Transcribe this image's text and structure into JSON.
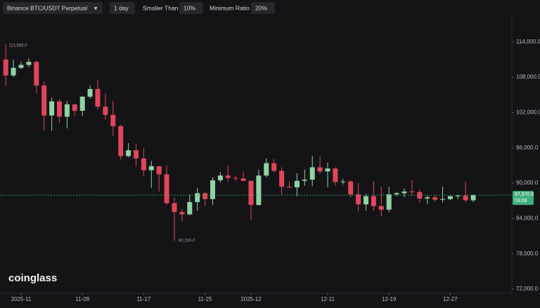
{
  "toolbar": {
    "symbol": "Binance BTC/USDT Perpetual",
    "interval": "1 day",
    "filter_label": "Smaller Than",
    "filter_value": "10%",
    "ratio_label": "Minimum Ratio",
    "ratio_value": "20%"
  },
  "brand": "coinglass",
  "chart_data": {
    "type": "candlestick",
    "x": [
      "10-30",
      "10-31",
      "11-01",
      "11-02",
      "11-03",
      "11-04",
      "11-05",
      "11-06",
      "11-07",
      "11-08",
      "11-09",
      "11-10",
      "11-11",
      "11-12",
      "11-13",
      "11-14",
      "11-15",
      "11-16",
      "11-17",
      "11-18",
      "11-19",
      "11-20",
      "11-21",
      "11-22",
      "11-23",
      "11-24",
      "11-25",
      "11-26",
      "11-27",
      "11-28",
      "11-29",
      "11-30",
      "12-01",
      "12-02",
      "12-03",
      "12-04",
      "12-05",
      "12-06",
      "12-07",
      "12-08",
      "12-09",
      "12-10",
      "12-11",
      "12-12",
      "12-13",
      "12-14",
      "12-15",
      "12-16",
      "12-17",
      "12-18",
      "12-19",
      "12-20",
      "12-21",
      "12-22",
      "12-23",
      "12-24",
      "12-25",
      "12-26",
      "12-27",
      "12-28",
      "12-29",
      "12-30"
    ],
    "open": [
      111000,
      108300,
      109600,
      110100,
      110600,
      106600,
      101500,
      103900,
      101300,
      103400,
      102300,
      104700,
      106000,
      103000,
      101600,
      99700,
      94600,
      95600,
      94200,
      92200,
      92900,
      91500,
      86600,
      85100,
      84700,
      86800,
      88300,
      87300,
      90500,
      91300,
      90900,
      90800,
      90400,
      86300,
      91300,
      93400,
      92100,
      89400,
      89300,
      90400,
      90600,
      92700,
      92000,
      92500,
      90200,
      90300,
      88100,
      86400,
      87800,
      86100,
      85500,
      88100,
      88300,
      88600,
      88500,
      87400,
      87600,
      87200,
      87300,
      87800,
      87900,
      87100
    ],
    "high": [
      113593,
      111000,
      110600,
      111200,
      110800,
      107300,
      104500,
      104200,
      104000,
      103400,
      104800,
      106600,
      107500,
      105300,
      104000,
      99900,
      96800,
      96600,
      96000,
      93800,
      92900,
      93100,
      87500,
      85600,
      88100,
      89200,
      88500,
      91000,
      91900,
      93100,
      91200,
      92000,
      90400,
      92300,
      94200,
      94100,
      92700,
      90300,
      91700,
      92300,
      94600,
      94500,
      93500,
      92700,
      90700,
      90500,
      90000,
      88200,
      90300,
      89400,
      89400,
      88500,
      89100,
      90500,
      88900,
      87900,
      88000,
      89400,
      87900,
      88000,
      90300,
      88100
    ],
    "low": [
      106500,
      108000,
      109400,
      109700,
      105300,
      98900,
      98900,
      100300,
      99300,
      101500,
      101400,
      104400,
      102500,
      100800,
      98000,
      94000,
      94400,
      92800,
      91200,
      89200,
      88600,
      86300,
      80230,
      83500,
      84600,
      85300,
      86100,
      86300,
      90100,
      90200,
      90400,
      90300,
      83800,
      86200,
      91000,
      91800,
      88000,
      89200,
      87800,
      89600,
      89500,
      91600,
      89300,
      89600,
      89800,
      87600,
      85200,
      85300,
      85300,
      84400,
      85100,
      87800,
      87600,
      87900,
      86600,
      86400,
      86900,
      86700,
      87100,
      87300,
      86700,
      86800
    ],
    "close": [
      108300,
      109600,
      110100,
      110600,
      106600,
      101500,
      103900,
      101300,
      103400,
      102300,
      104700,
      106000,
      103000,
      101600,
      99700,
      94600,
      95600,
      94200,
      92200,
      92900,
      91500,
      86600,
      85100,
      84700,
      86800,
      88300,
      87300,
      90500,
      91300,
      90900,
      90800,
      90400,
      86300,
      91300,
      93400,
      92100,
      89400,
      89300,
      90400,
      90600,
      92700,
      92000,
      92500,
      90200,
      90300,
      88100,
      86400,
      87800,
      86100,
      85500,
      88100,
      88300,
      88600,
      88500,
      87400,
      87600,
      87200,
      87300,
      87800,
      87900,
      87100,
      87970.6
    ],
    "up_color": "#8fd3a4",
    "down_color": "#e0455c",
    "ylim": [
      71300,
      118500
    ],
    "yticks": [
      {
        "value": 72000,
        "label": "72,000.0"
      },
      {
        "value": 78000,
        "label": "78,000.0"
      },
      {
        "value": 84000,
        "label": "84,000.0"
      },
      {
        "value": 90000,
        "label": "90,000.0"
      },
      {
        "value": 96000,
        "label": "96,000.0"
      },
      {
        "value": 102000,
        "label": "102,000.0"
      },
      {
        "value": 108000,
        "label": "108,000.0"
      },
      {
        "value": 114000,
        "label": "114,000.0"
      }
    ],
    "xticks": [
      {
        "value": "11-01",
        "label": "2025-11"
      },
      "11-09",
      "11-17",
      "11-25",
      {
        "value": "12-01",
        "label": "2025-12"
      },
      "12-11",
      "12-19",
      "12-27"
    ],
    "high_label": "113,593.0",
    "low_label": "80,230.0",
    "last_price": 87970.6,
    "last_price_label": "87,970.6",
    "countdown": "03:09"
  }
}
